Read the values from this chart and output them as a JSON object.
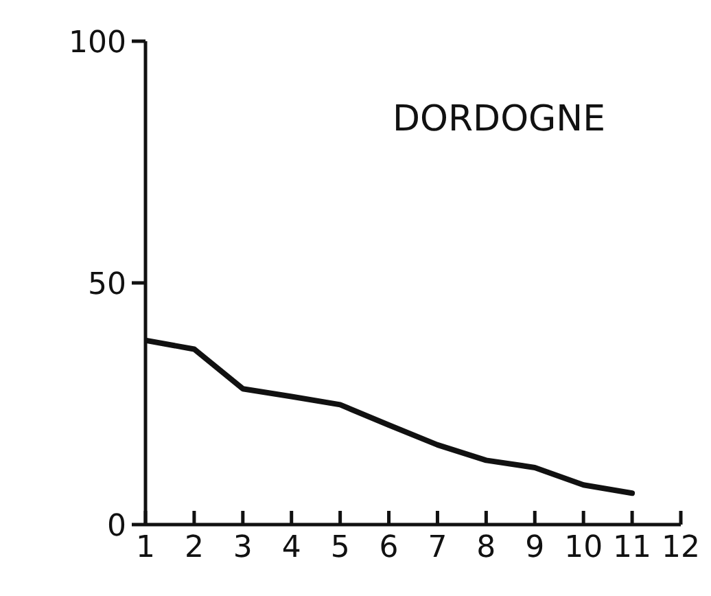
{
  "chart_data": {
    "type": "line",
    "title": "DORDOGNE",
    "x": [
      1,
      2,
      3,
      4,
      5,
      6,
      7,
      8,
      9,
      10,
      11
    ],
    "series": [
      {
        "color": "#111111",
        "values": [
          38.1,
          36.3,
          28.1,
          26.5,
          24.8,
          20.6,
          16.5,
          13.3,
          11.8,
          8.2,
          6.5
        ]
      }
    ],
    "xlim": [
      1,
      12
    ],
    "xticks": [
      1,
      2,
      3,
      4,
      5,
      6,
      7,
      8,
      9,
      10,
      11,
      12
    ],
    "ylim": [
      0,
      100
    ],
    "yticks": [
      0,
      50,
      100
    ],
    "grid": false,
    "legend": false,
    "marker": "none",
    "line_style": "solid"
  }
}
